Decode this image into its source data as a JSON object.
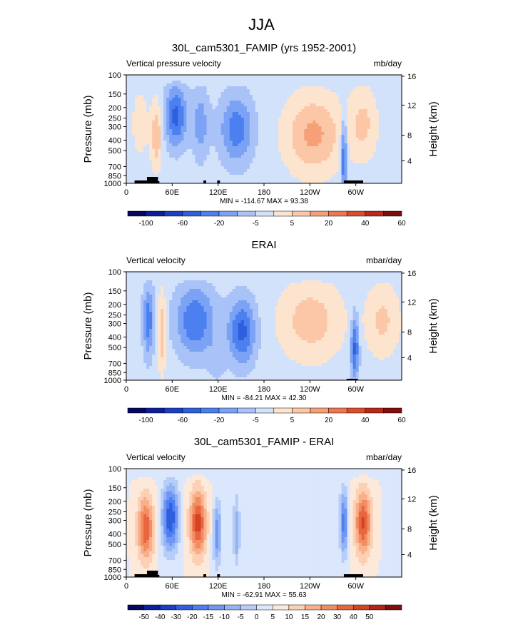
{
  "figure": {
    "title": "JJA"
  },
  "chart_data": [
    {
      "type": "heatmap",
      "title": "30L_cam5301_FAMIP (yrs 1952-2001)",
      "left_label": "Vertical pressure velocity",
      "units": "mb/day",
      "ylabel": "Pressure (mb)",
      "ylabel_right": "Height (km)",
      "x_ticks": [
        "0",
        "60E",
        "120E",
        "180",
        "120W",
        "60W"
      ],
      "y_ticks": [
        "100",
        "150",
        "200",
        "250",
        "300",
        "400",
        "500",
        "700",
        "850",
        "1000"
      ],
      "y_right_ticks": [
        "16",
        "12",
        "8",
        "4"
      ],
      "stats": "MIN = -114.67  MAX =  93.38",
      "colorbar": {
        "levels": [
          "-100",
          "-80",
          "-60",
          "-40",
          "-20",
          "-10",
          "-5",
          "0",
          "5",
          "10",
          "20",
          "40",
          "60",
          "80"
        ],
        "labels": [
          "-100",
          "-60",
          "-20",
          "-5",
          "5",
          "20",
          "40",
          "60"
        ],
        "colors": [
          "#08065e",
          "#0c1f9b",
          "#1b3fc4",
          "#2f5fdc",
          "#4c7ff0",
          "#7ba2f4",
          "#a9c3f8",
          "#d3e2fb",
          "#fde4cf",
          "#fbc7a6",
          "#f6a077",
          "#ee7750",
          "#dc4e2a",
          "#b8291a",
          "#7e0f0e"
        ]
      },
      "levels_shown_by_colorbar": true
    },
    {
      "type": "heatmap",
      "title": "ERAI",
      "left_label": "Vertical velocity",
      "units": "mbar/day",
      "ylabel": "Pressure (mb)",
      "ylabel_right": "Height (km)",
      "x_ticks": [
        "0",
        "60E",
        "120E",
        "180",
        "120W",
        "60W"
      ],
      "y_ticks": [
        "100",
        "150",
        "200",
        "250",
        "300",
        "400",
        "500",
        "700",
        "850",
        "1000"
      ],
      "y_right_ticks": [
        "16",
        "12",
        "8",
        "4"
      ],
      "stats": "MIN = -84.21  MAX =  42.30",
      "colorbar": {
        "labels": [
          "-100",
          "-60",
          "-20",
          "-5",
          "5",
          "20",
          "40",
          "60"
        ],
        "colors": [
          "#08065e",
          "#0c1f9b",
          "#1b3fc4",
          "#2f5fdc",
          "#4c7ff0",
          "#7ba2f4",
          "#a9c3f8",
          "#d3e2fb",
          "#fde4cf",
          "#fbc7a6",
          "#f6a077",
          "#ee7750",
          "#dc4e2a",
          "#b8291a",
          "#7e0f0e"
        ]
      }
    },
    {
      "type": "heatmap",
      "title": "30L_cam5301_FAMIP - ERAI",
      "left_label": "Vertical velocity",
      "units": "mbar/day",
      "ylabel": "Pressure (mb)",
      "ylabel_right": "Height (km)",
      "x_ticks": [
        "0",
        "60E",
        "120E",
        "180",
        "120W",
        "60W"
      ],
      "y_ticks": [
        "100",
        "150",
        "200",
        "250",
        "300",
        "400",
        "500",
        "700",
        "850",
        "1000"
      ],
      "y_right_ticks": [
        "16",
        "12",
        "8",
        "4"
      ],
      "stats": "MIN = -62.91  MAX =  55.63",
      "colorbar": {
        "labels": [
          "-50",
          "-40",
          "-30",
          "-20",
          "-15",
          "-10",
          "-5",
          "0",
          "5",
          "10",
          "15",
          "20",
          "30",
          "40",
          "50"
        ],
        "colors": [
          "#08065e",
          "#0c1f9b",
          "#1b3fc4",
          "#2f5fdc",
          "#4c7ff0",
          "#6f96f2",
          "#92b3f6",
          "#b6cdf9",
          "#dbe7fc",
          "#fde9d9",
          "#fcd0b3",
          "#f9b08a",
          "#f38c63",
          "#e8663f",
          "#d44324",
          "#b22318",
          "#7e0f0e"
        ]
      }
    }
  ]
}
